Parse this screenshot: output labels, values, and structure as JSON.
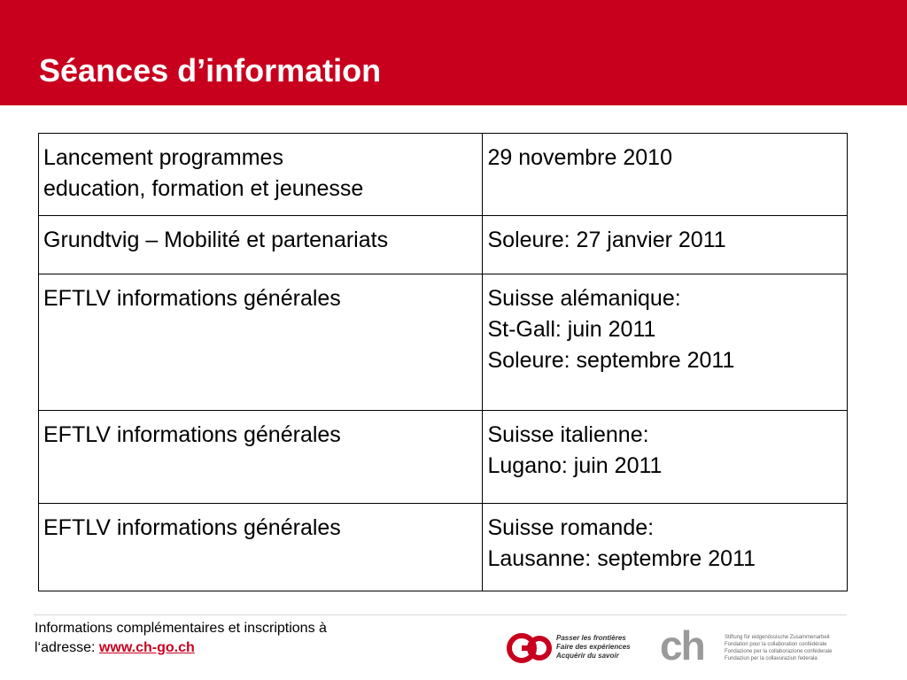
{
  "slide": {
    "title": "Séances d’information"
  },
  "table": {
    "rows": [
      {
        "left": [
          "Lancement programmes",
          "education, formation et jeunesse"
        ],
        "right": [
          "29 novembre 2010"
        ]
      },
      {
        "left": [
          "Grundtvig – Mobilité et partenariats"
        ],
        "right": [
          "Soleure: 27 janvier 2011"
        ]
      },
      {
        "left": [
          "EFTLV informations générales"
        ],
        "right": [
          "Suisse alémanique:",
          "St-Gall: juin 2011",
          "Soleure: septembre 2011"
        ]
      },
      {
        "left": [
          "EFTLV informations générales"
        ],
        "right": [
          "Suisse italienne:",
          "Lugano: juin 2011"
        ]
      },
      {
        "left": [
          "EFTLV informations générales"
        ],
        "right": [
          "Suisse romande:",
          "Lausanne: septembre 2011"
        ]
      }
    ]
  },
  "footer": {
    "note_line1": "Informations complémentaires et inscriptions à",
    "note_prefix": "l‘adresse: ",
    "link_text": "www.ch-go.ch",
    "go_logo_text": "GO",
    "go_tagline": [
      "Passer les frontières",
      "Faire des expériences",
      "Acquérir du savoir"
    ],
    "ch_logo_text": "ch",
    "ch_tagline": [
      "Stiftung für eidgenössische Zusammenarbeit",
      "Fondation pour la collaboration confédérale",
      "Fondazione per la collaborazione confederale",
      "Fundaziun per la collavuraziun federala"
    ]
  },
  "colors": {
    "brand_red": "#c8001e",
    "logo_grey": "#9a9a9a"
  }
}
